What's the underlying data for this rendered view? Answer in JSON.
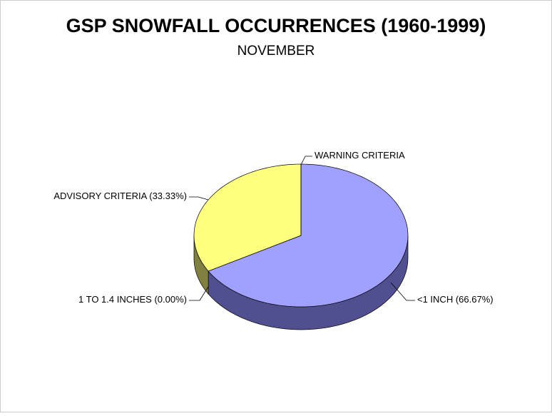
{
  "chart_data": {
    "type": "pie3d",
    "title": "GSP SNOWFALL OCCURRENCES (1960-1999)",
    "subtitle": "NOVEMBER",
    "categories": [
      "<1 INCH",
      "1 TO 1.4 INCHES",
      "ADVISORY CRITERIA",
      "WARNING CRITERIA"
    ],
    "values": [
      66.67,
      0,
      33.33,
      0
    ],
    "value_labels": [
      "(66.67%)",
      "(0.00%)",
      "(33.33%)",
      null
    ],
    "colors": [
      "#a0a0ff",
      "#a0a060",
      "#ffff80",
      "#a0ffff"
    ],
    "side_colors": [
      "#505090",
      "#808040",
      "#808040",
      "#508080"
    ]
  }
}
